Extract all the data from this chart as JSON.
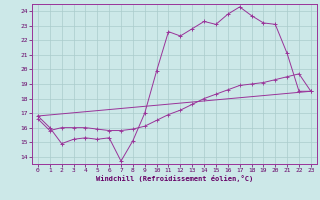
{
  "xlabel": "Windchill (Refroidissement éolien,°C)",
  "background_color": "#cce8e8",
  "grid_color": "#aacccc",
  "line_color": "#993399",
  "xlim": [
    -0.5,
    23.5
  ],
  "ylim": [
    13.5,
    24.5
  ],
  "xticks": [
    0,
    1,
    2,
    3,
    4,
    5,
    6,
    7,
    8,
    9,
    10,
    11,
    12,
    13,
    14,
    15,
    16,
    17,
    18,
    19,
    20,
    21,
    22,
    23
  ],
  "yticks": [
    14,
    15,
    16,
    17,
    18,
    19,
    20,
    21,
    22,
    23,
    24
  ],
  "curve1_x": [
    0,
    1,
    2,
    3,
    4,
    5,
    6,
    7,
    8,
    9,
    10,
    11,
    12,
    13,
    14,
    15,
    16,
    17,
    18,
    19,
    20,
    21,
    22,
    23
  ],
  "curve1_y": [
    16.8,
    16.0,
    14.9,
    15.2,
    15.3,
    15.2,
    15.3,
    13.7,
    15.1,
    17.0,
    19.9,
    22.6,
    22.3,
    22.8,
    23.3,
    23.1,
    23.8,
    24.3,
    23.7,
    23.2,
    23.1,
    21.1,
    18.5,
    18.5
  ],
  "curve3_x": [
    0,
    23
  ],
  "curve3_y": [
    16.8,
    18.5
  ],
  "curve4_x": [
    0,
    1,
    2,
    3,
    4,
    5,
    6,
    7,
    8,
    9,
    10,
    11,
    12,
    13,
    14,
    15,
    16,
    17,
    18,
    19,
    20,
    21,
    22,
    23
  ],
  "curve4_y": [
    16.6,
    15.8,
    16.0,
    16.0,
    16.0,
    15.9,
    15.8,
    15.8,
    15.9,
    16.1,
    16.5,
    16.9,
    17.2,
    17.6,
    18.0,
    18.3,
    18.6,
    18.9,
    19.0,
    19.1,
    19.3,
    19.5,
    19.7,
    18.5
  ]
}
